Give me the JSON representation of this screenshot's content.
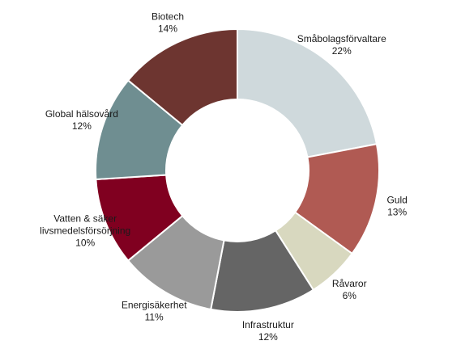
{
  "chart_data": {
    "type": "pie",
    "title": "",
    "slices": [
      {
        "name": "Småbolagsförvaltare",
        "label_lines": [
          "Småbolagsförvaltare"
        ],
        "value": 22,
        "value_label": "22%",
        "color": "#cfd9dc"
      },
      {
        "name": "Guld",
        "label_lines": [
          "Guld"
        ],
        "value": 13,
        "value_label": "13%",
        "color": "#b05a53"
      },
      {
        "name": "Råvaror",
        "label_lines": [
          "Råvaror"
        ],
        "value": 6,
        "value_label": "6%",
        "color": "#d8d8bf"
      },
      {
        "name": "Infrastruktur",
        "label_lines": [
          "Infrastruktur"
        ],
        "value": 12,
        "value_label": "12%",
        "color": "#656565"
      },
      {
        "name": "Energisäkerhet",
        "label_lines": [
          "Energisäkerhet"
        ],
        "value": 11,
        "value_label": "11%",
        "color": "#9a9a9a"
      },
      {
        "name": "Vatten & säker livsmedelsförsörjning",
        "label_lines": [
          "Vatten & säker",
          "livsmedelsförsörjning"
        ],
        "value": 10,
        "value_label": "10%",
        "color": "#800020"
      },
      {
        "name": "Global hälsovård",
        "label_lines": [
          "Global hälsovård"
        ],
        "value": 12,
        "value_label": "12%",
        "color": "#6f8e91"
      },
      {
        "name": "Biotech",
        "label_lines": [
          "Biotech"
        ],
        "value": 14,
        "value_label": "14%",
        "color": "#6d3530"
      }
    ]
  }
}
